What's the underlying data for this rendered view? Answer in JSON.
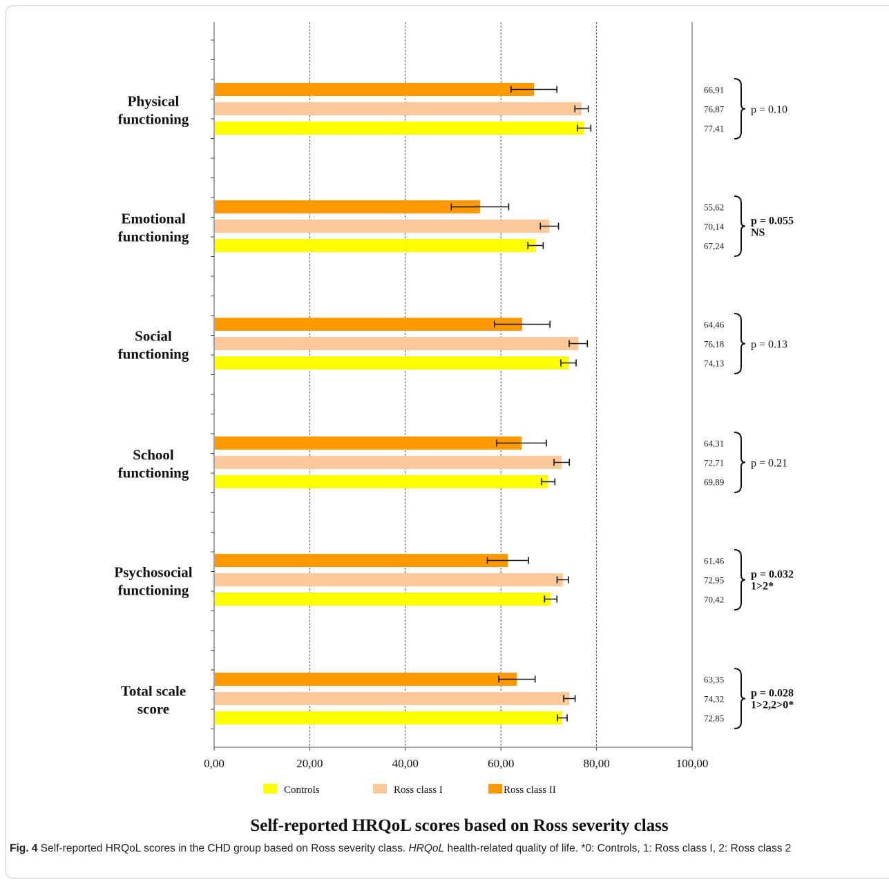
{
  "chart_data": {
    "type": "bar",
    "orientation": "horizontal",
    "title": "Self-reported  HRQoL scores based on Ross severity class",
    "categories": [
      [
        "Physical",
        "functioning"
      ],
      [
        "Emotional",
        "functioning"
      ],
      [
        "Social",
        "functioning"
      ],
      [
        "School",
        "functioning"
      ],
      [
        "Psychosocial",
        "functioning"
      ],
      [
        "Total scale",
        "score"
      ]
    ],
    "series": [
      {
        "name": "Ross class II",
        "color": "#ff9900",
        "values": [
          66.91,
          55.62,
          64.46,
          64.31,
          61.46,
          63.35
        ],
        "errors": [
          4.8,
          6.0,
          5.8,
          5.2,
          4.3,
          3.8
        ],
        "labels": [
          "66,91",
          "55,62",
          "64,46",
          "64,31",
          "61,46",
          "63,35"
        ]
      },
      {
        "name": "Ross class I",
        "color": "#fbc999",
        "values": [
          76.87,
          70.14,
          76.18,
          72.71,
          72.95,
          74.32
        ],
        "errors": [
          1.4,
          1.9,
          1.9,
          1.6,
          1.2,
          1.2
        ],
        "labels": [
          "76,87",
          "70,14",
          "76,18",
          "72,71",
          "72,95",
          "74,32"
        ]
      },
      {
        "name": "Controls",
        "color": "#ffff00",
        "values": [
          77.41,
          67.24,
          74.13,
          69.89,
          70.42,
          72.85
        ],
        "errors": [
          1.4,
          1.6,
          1.6,
          1.4,
          1.3,
          1.0
        ],
        "labels": [
          "77,41",
          "67,24",
          "74,13",
          "69,89",
          "70,42",
          "72,85"
        ]
      }
    ],
    "legend_order": [
      "Controls",
      "Ross class I",
      "Ross class II"
    ],
    "p_values": [
      {
        "line1": "p = 0.10",
        "line2": "",
        "bold": false
      },
      {
        "line1": "p = 0.055",
        "line2": "NS",
        "bold": true
      },
      {
        "line1": "p = 0.13",
        "line2": "",
        "bold": false
      },
      {
        "line1": "p = 0.21",
        "line2": "",
        "bold": false
      },
      {
        "line1": "p = 0.032",
        "line2": "1>2*",
        "bold": true
      },
      {
        "line1": "p = 0.028",
        "line2": "1>2,2>0*",
        "bold": true
      }
    ],
    "x_ticks": [
      "0,00",
      "20,00",
      "40,00",
      "60,00",
      "80,00",
      "100,00"
    ],
    "xlim": [
      0,
      100
    ],
    "grid": true,
    "legend_position": "bottom"
  },
  "caption": {
    "fig_label": "Fig. 4",
    "text_1": " Self-reported HRQoL scores in the CHD group based on Ross severity class. ",
    "abbr": "HRQoL",
    "text_2": " health-related quality of life. *0: Controls, 1: Ross class I, 2: Ross class 2"
  }
}
